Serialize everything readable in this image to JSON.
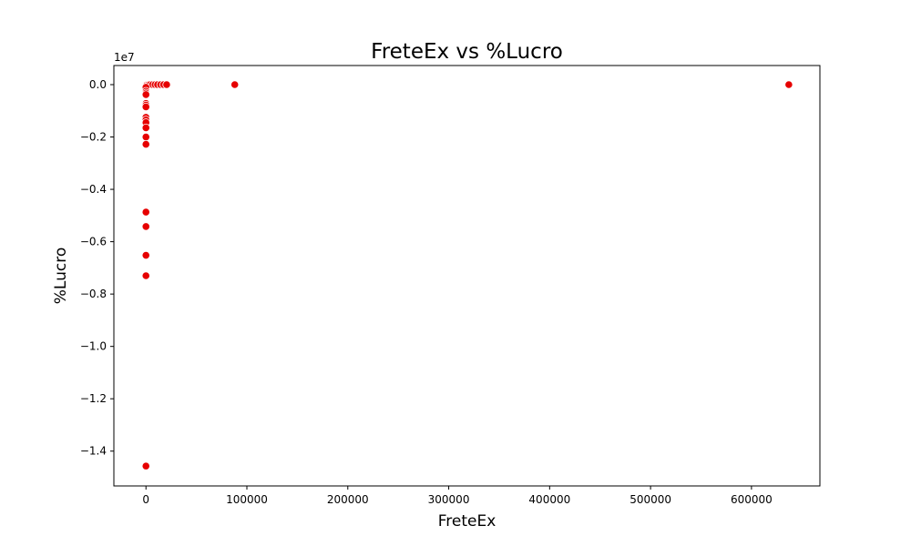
{
  "chart_data": {
    "type": "scatter",
    "title": "FreteEx vs %Lucro",
    "xlabel": "FreteEx",
    "ylabel": "%Lucro",
    "y_offset_label": "1e7",
    "xlim": [
      -31800,
      667800
    ],
    "ylim": [
      -15330000,
      730000
    ],
    "x_ticks": [
      0,
      100000,
      200000,
      300000,
      400000,
      500000,
      600000
    ],
    "x_tick_labels": [
      "0",
      "100000",
      "200000",
      "300000",
      "400000",
      "500000",
      "600000"
    ],
    "y_ticks": [
      0,
      -2000000,
      -4000000,
      -6000000,
      -8000000,
      -10000000,
      -12000000,
      -14000000
    ],
    "y_tick_labels": [
      "0.0",
      "−0.2",
      "−0.4",
      "−0.6",
      "−0.8",
      "−1.0",
      "−1.2",
      "−1.4"
    ],
    "grid": false,
    "marker_color": "#e60000",
    "marker_edge_color": "#ffffff",
    "points": [
      {
        "x": 0,
        "y": 0
      },
      {
        "x": 200,
        "y": 0
      },
      {
        "x": 500,
        "y": 0
      },
      {
        "x": 1200,
        "y": 0
      },
      {
        "x": 2500,
        "y": 0
      },
      {
        "x": 4000,
        "y": 0
      },
      {
        "x": 6500,
        "y": 0
      },
      {
        "x": 9000,
        "y": 0
      },
      {
        "x": 11500,
        "y": 0
      },
      {
        "x": 14500,
        "y": 0
      },
      {
        "x": 17500,
        "y": 0
      },
      {
        "x": 20500,
        "y": 0
      },
      {
        "x": 88000,
        "y": 0
      },
      {
        "x": 637000,
        "y": 0
      },
      {
        "x": 0,
        "y": -100000
      },
      {
        "x": 0,
        "y": -250000
      },
      {
        "x": 0,
        "y": -320000
      },
      {
        "x": 0,
        "y": -380000
      },
      {
        "x": 0,
        "y": -720000
      },
      {
        "x": 0,
        "y": -780000
      },
      {
        "x": 0,
        "y": -850000
      },
      {
        "x": 0,
        "y": -1250000
      },
      {
        "x": 0,
        "y": -1350000
      },
      {
        "x": 0,
        "y": -1450000
      },
      {
        "x": 0,
        "y": -1650000
      },
      {
        "x": 0,
        "y": -2000000
      },
      {
        "x": 0,
        "y": -2280000
      },
      {
        "x": 0,
        "y": -4870000
      },
      {
        "x": 0,
        "y": -5420000
      },
      {
        "x": 0,
        "y": -6520000
      },
      {
        "x": 0,
        "y": -7300000
      },
      {
        "x": 0,
        "y": -14570000
      }
    ]
  }
}
